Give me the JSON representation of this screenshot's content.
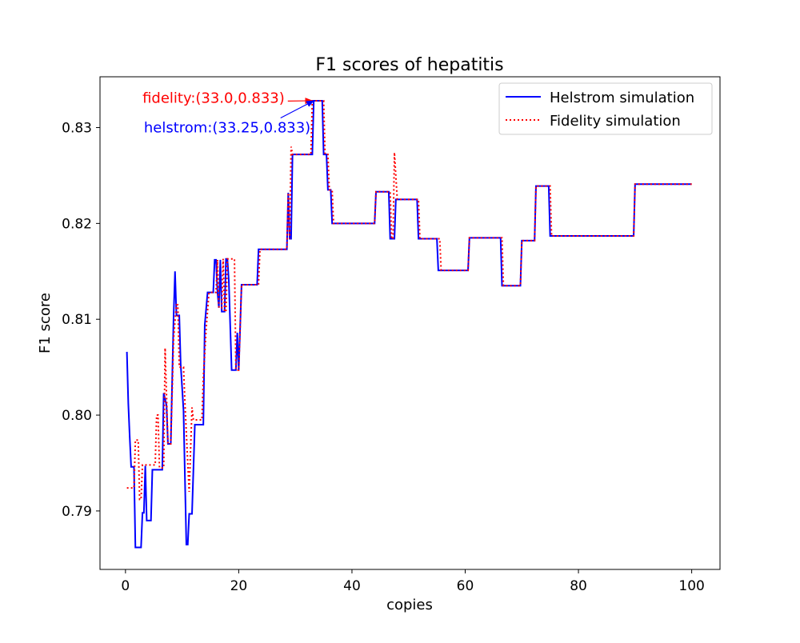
{
  "chart_data": {
    "type": "line",
    "title": "F1 scores of hepatitis",
    "xlabel": "copies",
    "ylabel": "F1 score",
    "xlim": [
      -4.5,
      105
    ],
    "ylim": [
      0.7839,
      0.8353
    ],
    "xticks": [
      0,
      20,
      40,
      60,
      80,
      100
    ],
    "yticks": [
      0.79,
      0.8,
      0.81,
      0.82,
      0.83
    ],
    "ytick_labels": [
      "0.79",
      "0.80",
      "0.81",
      "0.82",
      "0.83"
    ],
    "grid": false,
    "legend_position": "top-right",
    "series": [
      {
        "name": "Helstrom simulation",
        "color": "#0000ff",
        "style": "solid",
        "points": [
          [
            0.25,
            0.8066
          ],
          [
            0.5,
            0.8012
          ],
          [
            0.75,
            0.7977
          ],
          [
            1.0,
            0.7946
          ],
          [
            1.5,
            0.7946
          ],
          [
            1.75,
            0.7862
          ],
          [
            2.75,
            0.7862
          ],
          [
            3.0,
            0.7898
          ],
          [
            3.25,
            0.7898
          ],
          [
            3.5,
            0.7947
          ],
          [
            3.75,
            0.789
          ],
          [
            4.5,
            0.789
          ],
          [
            4.75,
            0.7943
          ],
          [
            6.5,
            0.7943
          ],
          [
            6.75,
            0.8023
          ],
          [
            7.25,
            0.801
          ],
          [
            7.5,
            0.797
          ],
          [
            8.0,
            0.797
          ],
          [
            8.5,
            0.8103
          ],
          [
            8.75,
            0.815
          ],
          [
            9.0,
            0.8104
          ],
          [
            9.5,
            0.8104
          ],
          [
            9.75,
            0.8053
          ],
          [
            10.25,
            0.8005
          ],
          [
            10.75,
            0.7865
          ],
          [
            11.0,
            0.7865
          ],
          [
            11.25,
            0.7897
          ],
          [
            11.75,
            0.7897
          ],
          [
            12.25,
            0.799
          ],
          [
            13.75,
            0.799
          ],
          [
            14.0,
            0.8094
          ],
          [
            14.5,
            0.8128
          ],
          [
            15.5,
            0.8128
          ],
          [
            15.75,
            0.8162
          ],
          [
            16.0,
            0.8162
          ],
          [
            16.25,
            0.8128
          ],
          [
            16.5,
            0.8112
          ],
          [
            16.75,
            0.8162
          ],
          [
            17.0,
            0.8108
          ],
          [
            17.5,
            0.8108
          ],
          [
            17.75,
            0.8163
          ],
          [
            18.0,
            0.8163
          ],
          [
            18.25,
            0.814
          ],
          [
            18.75,
            0.8047
          ],
          [
            19.5,
            0.8047
          ],
          [
            19.75,
            0.8086
          ],
          [
            20.0,
            0.8047
          ],
          [
            20.5,
            0.8136
          ],
          [
            23.25,
            0.8136
          ],
          [
            23.5,
            0.8173
          ],
          [
            28.5,
            0.8173
          ],
          [
            28.75,
            0.8232
          ],
          [
            29.0,
            0.8184
          ],
          [
            29.25,
            0.8184
          ],
          [
            29.5,
            0.8272
          ],
          [
            33.0,
            0.8272
          ],
          [
            33.25,
            0.8328
          ],
          [
            34.75,
            0.8328
          ],
          [
            35.0,
            0.8272
          ],
          [
            35.5,
            0.8272
          ],
          [
            35.75,
            0.8235
          ],
          [
            36.25,
            0.8235
          ],
          [
            36.5,
            0.82
          ],
          [
            44.0,
            0.82
          ],
          [
            44.25,
            0.8233
          ],
          [
            46.5,
            0.8233
          ],
          [
            46.75,
            0.8184
          ],
          [
            47.5,
            0.8184
          ],
          [
            47.75,
            0.8225
          ],
          [
            51.5,
            0.8225
          ],
          [
            51.75,
            0.8184
          ],
          [
            55.0,
            0.8184
          ],
          [
            55.25,
            0.8151
          ],
          [
            60.5,
            0.8151
          ],
          [
            60.75,
            0.8185
          ],
          [
            66.25,
            0.8185
          ],
          [
            66.5,
            0.8135
          ],
          [
            69.75,
            0.8135
          ],
          [
            70.0,
            0.8182
          ],
          [
            72.25,
            0.8182
          ],
          [
            72.5,
            0.8239
          ],
          [
            74.75,
            0.8239
          ],
          [
            75.0,
            0.8187
          ],
          [
            89.75,
            0.8187
          ],
          [
            90.0,
            0.8241
          ],
          [
            100.0,
            0.8241
          ]
        ]
      },
      {
        "name": "Fidelity simulation",
        "color": "#ff0000",
        "style": "dotted",
        "points": [
          [
            0.25,
            0.7924
          ],
          [
            1.5,
            0.7924
          ],
          [
            1.75,
            0.7974
          ],
          [
            2.25,
            0.7974
          ],
          [
            2.5,
            0.7912
          ],
          [
            2.75,
            0.7912
          ],
          [
            3.0,
            0.7948
          ],
          [
            5.25,
            0.7948
          ],
          [
            5.5,
            0.8
          ],
          [
            5.75,
            0.8
          ],
          [
            6.0,
            0.7945
          ],
          [
            6.75,
            0.7945
          ],
          [
            7.0,
            0.807
          ],
          [
            7.5,
            0.797
          ],
          [
            8.0,
            0.797
          ],
          [
            8.5,
            0.808
          ],
          [
            9.0,
            0.8115
          ],
          [
            9.25,
            0.8115
          ],
          [
            9.5,
            0.805
          ],
          [
            10.25,
            0.805
          ],
          [
            10.5,
            0.8013
          ],
          [
            11.0,
            0.795
          ],
          [
            11.25,
            0.792
          ],
          [
            11.75,
            0.8008
          ],
          [
            12.0,
            0.7995
          ],
          [
            13.5,
            0.7995
          ],
          [
            13.75,
            0.804
          ],
          [
            14.25,
            0.809
          ],
          [
            14.75,
            0.8128
          ],
          [
            16.0,
            0.8128
          ],
          [
            16.25,
            0.8162
          ],
          [
            16.5,
            0.8112
          ],
          [
            17.0,
            0.8112
          ],
          [
            17.25,
            0.8163
          ],
          [
            17.5,
            0.8108
          ],
          [
            17.75,
            0.8108
          ],
          [
            18.0,
            0.8163
          ],
          [
            19.25,
            0.8163
          ],
          [
            19.5,
            0.8047
          ],
          [
            20.0,
            0.8047
          ],
          [
            20.25,
            0.809
          ],
          [
            20.5,
            0.8136
          ],
          [
            23.5,
            0.8136
          ],
          [
            23.75,
            0.8173
          ],
          [
            28.5,
            0.8173
          ],
          [
            28.75,
            0.8232
          ],
          [
            29.0,
            0.8184
          ],
          [
            29.25,
            0.828
          ],
          [
            29.5,
            0.8272
          ],
          [
            32.75,
            0.8272
          ],
          [
            33.0,
            0.8328
          ],
          [
            35.0,
            0.8328
          ],
          [
            35.25,
            0.8272
          ],
          [
            35.75,
            0.8272
          ],
          [
            36.0,
            0.8235
          ],
          [
            36.5,
            0.8235
          ],
          [
            36.75,
            0.82
          ],
          [
            44.0,
            0.82
          ],
          [
            44.25,
            0.8233
          ],
          [
            46.75,
            0.8233
          ],
          [
            47.0,
            0.8184
          ],
          [
            47.25,
            0.8184
          ],
          [
            47.5,
            0.8274
          ],
          [
            48.0,
            0.8225
          ],
          [
            51.75,
            0.8225
          ],
          [
            52.0,
            0.8184
          ],
          [
            55.5,
            0.8184
          ],
          [
            55.75,
            0.8151
          ],
          [
            60.5,
            0.8151
          ],
          [
            60.75,
            0.8185
          ],
          [
            66.5,
            0.8185
          ],
          [
            66.75,
            0.8135
          ],
          [
            69.75,
            0.8135
          ],
          [
            70.0,
            0.8182
          ],
          [
            72.25,
            0.8182
          ],
          [
            72.5,
            0.8239
          ],
          [
            75.0,
            0.8239
          ],
          [
            75.25,
            0.8187
          ],
          [
            89.75,
            0.8187
          ],
          [
            90.0,
            0.8241
          ],
          [
            100.0,
            0.8241
          ]
        ]
      }
    ],
    "annotations": [
      {
        "text": "fidelity:(33.0,0.833)",
        "color": "#ff0000",
        "text_at": [
          3.0,
          0.8326
        ],
        "arrow_to": [
          33.0,
          0.8328
        ]
      },
      {
        "text": "helstrom:(33.25,0.833)",
        "color": "#0000ff",
        "text_at": [
          3.25,
          0.8295
        ],
        "arrow_to": [
          33.25,
          0.8328
        ]
      }
    ]
  }
}
